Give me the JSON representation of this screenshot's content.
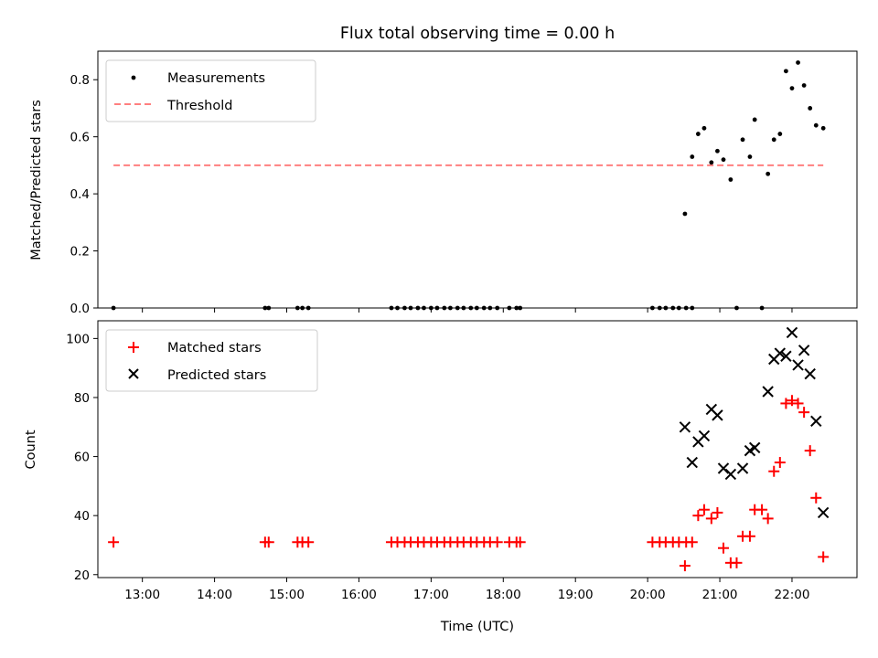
{
  "chart_data": [
    {
      "type": "scatter",
      "title": "Flux total observing time = 0.00 h",
      "xlabel": "",
      "ylabel": "Matched/Predicted stars",
      "xlim": [
        "12:23",
        "22:54"
      ],
      "ylim": [
        0,
        0.9
      ],
      "yticks": [
        "0.0",
        "0.2",
        "0.4",
        "0.6",
        "0.8"
      ],
      "legend": {
        "location": "top-left",
        "entries": [
          {
            "label": "Measurements",
            "marker": "dot",
            "color": "#000000"
          },
          {
            "label": "Threshold",
            "marker": "dashed-line",
            "color": "#ff7f7f"
          }
        ]
      },
      "threshold": {
        "value": 0.5,
        "x_start": "12:36",
        "x_end": "22:26"
      },
      "series": [
        {
          "name": "Measurements",
          "color": "#000000",
          "points": [
            [
              "12:36",
              0.0
            ],
            [
              "14:42",
              0.0
            ],
            [
              "14:45",
              0.0
            ],
            [
              "15:09",
              0.0
            ],
            [
              "15:13",
              0.0
            ],
            [
              "15:18",
              0.0
            ],
            [
              "16:27",
              0.0
            ],
            [
              "16:32",
              0.0
            ],
            [
              "16:38",
              0.0
            ],
            [
              "16:43",
              0.0
            ],
            [
              "16:49",
              0.0
            ],
            [
              "16:54",
              0.0
            ],
            [
              "17:00",
              0.0
            ],
            [
              "17:05",
              0.0
            ],
            [
              "17:11",
              0.0
            ],
            [
              "17:16",
              0.0
            ],
            [
              "17:22",
              0.0
            ],
            [
              "17:27",
              0.0
            ],
            [
              "17:33",
              0.0
            ],
            [
              "17:38",
              0.0
            ],
            [
              "17:44",
              0.0
            ],
            [
              "17:49",
              0.0
            ],
            [
              "17:55",
              0.0
            ],
            [
              "18:05",
              0.0
            ],
            [
              "18:11",
              0.0
            ],
            [
              "18:14",
              0.0
            ],
            [
              "20:04",
              0.0
            ],
            [
              "20:10",
              0.0
            ],
            [
              "20:15",
              0.0
            ],
            [
              "20:21",
              0.0
            ],
            [
              "20:26",
              0.0
            ],
            [
              "20:32",
              0.0
            ],
            [
              "20:37",
              0.0
            ],
            [
              "21:14",
              0.0
            ],
            [
              "21:35",
              0.0
            ],
            [
              "20:31",
              0.33
            ],
            [
              "20:37",
              0.53
            ],
            [
              "20:42",
              0.61
            ],
            [
              "20:47",
              0.63
            ],
            [
              "20:53",
              0.51
            ],
            [
              "20:58",
              0.55
            ],
            [
              "21:03",
              0.52
            ],
            [
              "21:09",
              0.45
            ],
            [
              "21:19",
              0.59
            ],
            [
              "21:25",
              0.53
            ],
            [
              "21:29",
              0.66
            ],
            [
              "21:40",
              0.47
            ],
            [
              "21:45",
              0.59
            ],
            [
              "21:50",
              0.61
            ],
            [
              "21:55",
              0.83
            ],
            [
              "22:00",
              0.77
            ],
            [
              "22:05",
              0.86
            ],
            [
              "22:10",
              0.78
            ],
            [
              "22:15",
              0.7
            ],
            [
              "22:20",
              0.64
            ],
            [
              "22:26",
              0.63
            ]
          ]
        }
      ]
    },
    {
      "type": "scatter",
      "title": "",
      "xlabel": "Time (UTC)",
      "ylabel": "Count",
      "xlim": [
        "12:23",
        "22:54"
      ],
      "ylim": [
        19,
        106
      ],
      "yticks": [
        "20",
        "40",
        "60",
        "80",
        "100"
      ],
      "xticks": [
        "13:00",
        "14:00",
        "15:00",
        "16:00",
        "17:00",
        "18:00",
        "19:00",
        "20:00",
        "21:00",
        "22:00"
      ],
      "legend": {
        "location": "top-left",
        "entries": [
          {
            "label": "Matched stars",
            "marker": "plus",
            "color": "#ff0000"
          },
          {
            "label": "Predicted stars",
            "marker": "x",
            "color": "#000000"
          }
        ]
      },
      "series": [
        {
          "name": "Matched stars",
          "marker": "plus",
          "color": "#ff0000",
          "points": [
            [
              "12:36",
              31
            ],
            [
              "14:42",
              31
            ],
            [
              "14:45",
              31
            ],
            [
              "15:09",
              31
            ],
            [
              "15:13",
              31
            ],
            [
              "15:18",
              31
            ],
            [
              "16:27",
              31
            ],
            [
              "16:32",
              31
            ],
            [
              "16:38",
              31
            ],
            [
              "16:43",
              31
            ],
            [
              "16:49",
              31
            ],
            [
              "16:54",
              31
            ],
            [
              "17:00",
              31
            ],
            [
              "17:05",
              31
            ],
            [
              "17:11",
              31
            ],
            [
              "17:16",
              31
            ],
            [
              "17:22",
              31
            ],
            [
              "17:27",
              31
            ],
            [
              "17:33",
              31
            ],
            [
              "17:38",
              31
            ],
            [
              "17:44",
              31
            ],
            [
              "17:49",
              31
            ],
            [
              "17:55",
              31
            ],
            [
              "18:05",
              31
            ],
            [
              "18:11",
              31
            ],
            [
              "18:14",
              31
            ],
            [
              "20:04",
              31
            ],
            [
              "20:10",
              31
            ],
            [
              "20:15",
              31
            ],
            [
              "20:21",
              31
            ],
            [
              "20:26",
              31
            ],
            [
              "20:32",
              31
            ],
            [
              "20:37",
              31
            ],
            [
              "20:31",
              23
            ],
            [
              "20:42",
              40
            ],
            [
              "20:47",
              42
            ],
            [
              "20:53",
              39
            ],
            [
              "20:58",
              41
            ],
            [
              "21:03",
              29
            ],
            [
              "21:09",
              24
            ],
            [
              "21:14",
              24
            ],
            [
              "21:19",
              33
            ],
            [
              "21:25",
              33
            ],
            [
              "21:29",
              42
            ],
            [
              "21:35",
              42
            ],
            [
              "21:40",
              39
            ],
            [
              "21:45",
              55
            ],
            [
              "21:50",
              58
            ],
            [
              "21:55",
              78
            ],
            [
              "22:00",
              79
            ],
            [
              "22:05",
              78
            ],
            [
              "22:10",
              75
            ],
            [
              "22:15",
              62
            ],
            [
              "22:20",
              46
            ],
            [
              "22:26",
              26
            ]
          ]
        },
        {
          "name": "Predicted stars",
          "marker": "x",
          "color": "#000000",
          "points": [
            [
              "20:31",
              70
            ],
            [
              "20:37",
              58
            ],
            [
              "20:42",
              65
            ],
            [
              "20:47",
              67
            ],
            [
              "20:53",
              76
            ],
            [
              "20:58",
              74
            ],
            [
              "21:03",
              56
            ],
            [
              "21:09",
              54
            ],
            [
              "21:19",
              56
            ],
            [
              "21:25",
              62
            ],
            [
              "21:29",
              63
            ],
            [
              "21:40",
              82
            ],
            [
              "21:45",
              93
            ],
            [
              "21:50",
              95
            ],
            [
              "21:55",
              94
            ],
            [
              "22:00",
              102
            ],
            [
              "22:05",
              91
            ],
            [
              "22:10",
              96
            ],
            [
              "22:15",
              88
            ],
            [
              "22:20",
              72
            ],
            [
              "22:26",
              41
            ]
          ]
        }
      ]
    }
  ]
}
